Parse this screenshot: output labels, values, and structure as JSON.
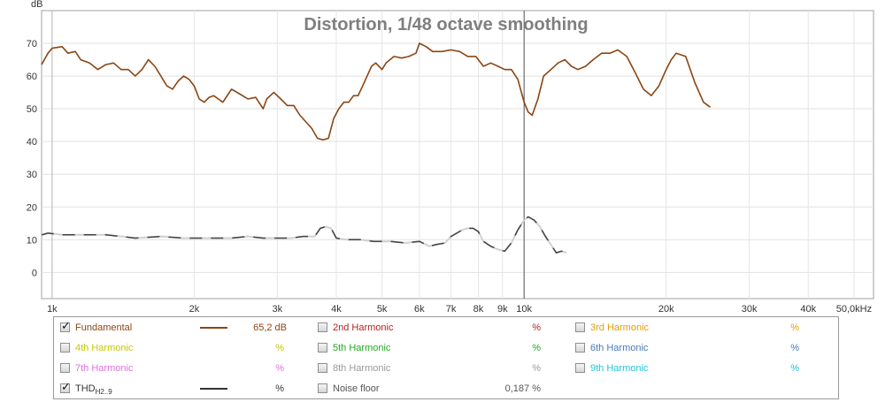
{
  "chart_data": {
    "type": "line",
    "title": "Distortion, 1/48 octave smoothing",
    "ylabel": "dB",
    "xscale": "log",
    "xlim": [
      950,
      55000
    ],
    "ylim": [
      -8,
      80
    ],
    "grid": true,
    "y_ticks": [
      "0",
      "10",
      "20",
      "30",
      "40",
      "50",
      "60",
      "70"
    ],
    "x_ticks": [
      {
        "value": 1000,
        "label": "1k"
      },
      {
        "value": 2000,
        "label": "2k"
      },
      {
        "value": 3000,
        "label": "3k"
      },
      {
        "value": 4000,
        "label": "4k"
      },
      {
        "value": 5000,
        "label": "5k"
      },
      {
        "value": 6000,
        "label": "6k"
      },
      {
        "value": 7000,
        "label": "7k"
      },
      {
        "value": 8000,
        "label": "8k"
      },
      {
        "value": 9000,
        "label": "9k"
      },
      {
        "value": 10000,
        "label": "10k"
      },
      {
        "value": 20000,
        "label": "20k"
      },
      {
        "value": 30000,
        "label": "30k"
      },
      {
        "value": 40000,
        "label": "40k"
      },
      {
        "value": 50000,
        "label": "50,0kHz"
      }
    ],
    "cursor_x": 10000,
    "series": [
      {
        "name": "Fundamental",
        "color": "#8b4513",
        "points": [
          [
            950,
            63.5
          ],
          [
            980,
            67
          ],
          [
            1000,
            68.5
          ],
          [
            1050,
            69
          ],
          [
            1080,
            67
          ],
          [
            1120,
            67.5
          ],
          [
            1150,
            65
          ],
          [
            1200,
            64
          ],
          [
            1250,
            62
          ],
          [
            1300,
            63.5
          ],
          [
            1350,
            64
          ],
          [
            1400,
            62
          ],
          [
            1450,
            62
          ],
          [
            1500,
            60
          ],
          [
            1550,
            62
          ],
          [
            1600,
            65
          ],
          [
            1650,
            63
          ],
          [
            1700,
            60
          ],
          [
            1750,
            57
          ],
          [
            1800,
            56
          ],
          [
            1850,
            58.5
          ],
          [
            1900,
            60
          ],
          [
            1950,
            59
          ],
          [
            2000,
            57
          ],
          [
            2050,
            53
          ],
          [
            2100,
            52
          ],
          [
            2150,
            53.5
          ],
          [
            2200,
            54
          ],
          [
            2250,
            53
          ],
          [
            2300,
            52
          ],
          [
            2400,
            56
          ],
          [
            2500,
            54.5
          ],
          [
            2600,
            53
          ],
          [
            2700,
            53.5
          ],
          [
            2800,
            50
          ],
          [
            2850,
            53
          ],
          [
            2950,
            55
          ],
          [
            3050,
            53
          ],
          [
            3150,
            51
          ],
          [
            3250,
            51
          ],
          [
            3350,
            48
          ],
          [
            3450,
            46
          ],
          [
            3550,
            44
          ],
          [
            3650,
            41
          ],
          [
            3750,
            40.5
          ],
          [
            3850,
            41
          ],
          [
            3950,
            47
          ],
          [
            4050,
            50
          ],
          [
            4150,
            52
          ],
          [
            4250,
            52
          ],
          [
            4350,
            54
          ],
          [
            4450,
            54
          ],
          [
            4550,
            57
          ],
          [
            4650,
            60
          ],
          [
            4750,
            63
          ],
          [
            4850,
            64
          ],
          [
            5000,
            62
          ],
          [
            5100,
            64
          ],
          [
            5300,
            66
          ],
          [
            5500,
            65.5
          ],
          [
            5700,
            66
          ],
          [
            5900,
            67
          ],
          [
            6000,
            70
          ],
          [
            6200,
            69
          ],
          [
            6400,
            67.5
          ],
          [
            6700,
            67.5
          ],
          [
            7000,
            68
          ],
          [
            7300,
            67.5
          ],
          [
            7600,
            66
          ],
          [
            7900,
            66
          ],
          [
            8200,
            63
          ],
          [
            8500,
            64
          ],
          [
            8800,
            63
          ],
          [
            9100,
            62
          ],
          [
            9400,
            62
          ],
          [
            9700,
            59
          ],
          [
            10000,
            52
          ],
          [
            10200,
            49
          ],
          [
            10400,
            48
          ],
          [
            10700,
            53
          ],
          [
            11000,
            60
          ],
          [
            11400,
            62
          ],
          [
            11800,
            64
          ],
          [
            12200,
            65
          ],
          [
            12600,
            63
          ],
          [
            13000,
            62
          ],
          [
            13500,
            63
          ],
          [
            14000,
            65
          ],
          [
            14600,
            67
          ],
          [
            15200,
            67
          ],
          [
            15800,
            68
          ],
          [
            16500,
            66
          ],
          [
            17200,
            61
          ],
          [
            17900,
            56
          ],
          [
            18600,
            54
          ],
          [
            19300,
            57
          ],
          [
            20000,
            62
          ],
          [
            20500,
            65
          ],
          [
            21000,
            67
          ],
          [
            22000,
            66
          ],
          [
            23000,
            58
          ],
          [
            24000,
            52
          ],
          [
            24800,
            50.5
          ]
        ]
      },
      {
        "name": "THD",
        "color": "#444444",
        "points": [
          [
            950,
            11.5
          ],
          [
            980,
            12
          ],
          [
            1050,
            11.5
          ],
          [
            1200,
            11.5
          ],
          [
            1300,
            11.5
          ],
          [
            1400,
            11
          ],
          [
            1500,
            10.5
          ],
          [
            1700,
            11
          ],
          [
            1900,
            10.5
          ],
          [
            2000,
            10.5
          ],
          [
            2200,
            10.5
          ],
          [
            2400,
            10.5
          ],
          [
            2600,
            11
          ],
          [
            2800,
            10.5
          ],
          [
            3000,
            10.5
          ],
          [
            3200,
            10.5
          ],
          [
            3400,
            11
          ],
          [
            3600,
            11
          ],
          [
            3700,
            13.5
          ],
          [
            3800,
            14
          ],
          [
            3900,
            13.5
          ],
          [
            4000,
            10.5
          ],
          [
            4200,
            10
          ],
          [
            4500,
            10
          ],
          [
            4800,
            9.5
          ],
          [
            5200,
            9.5
          ],
          [
            5600,
            9
          ],
          [
            6000,
            9.5
          ],
          [
            6300,
            8
          ],
          [
            6500,
            8.5
          ],
          [
            6800,
            9
          ],
          [
            7000,
            11
          ],
          [
            7200,
            12
          ],
          [
            7400,
            13
          ],
          [
            7600,
            13.5
          ],
          [
            7800,
            13.5
          ],
          [
            8000,
            12.5
          ],
          [
            8200,
            9.5
          ],
          [
            8500,
            8
          ],
          [
            8800,
            7
          ],
          [
            9100,
            6.5
          ],
          [
            9400,
            9
          ],
          [
            9700,
            13
          ],
          [
            10000,
            16
          ],
          [
            10200,
            17
          ],
          [
            10500,
            16
          ],
          [
            10800,
            14
          ],
          [
            11100,
            11
          ],
          [
            11400,
            8.5
          ],
          [
            11700,
            6
          ],
          [
            12000,
            6.5
          ],
          [
            12300,
            6
          ]
        ]
      }
    ]
  },
  "legend": {
    "fundamental": {
      "label": "Fundamental",
      "checked": true,
      "value": "65,2 dB",
      "color": "#8b4513"
    },
    "h2": {
      "label": "2nd Harmonic",
      "checked": false,
      "value": "%",
      "color": "#b22222"
    },
    "h3": {
      "label": "3rd Harmonic",
      "checked": false,
      "value": "%",
      "color": "#e0a000"
    },
    "h4": {
      "label": "4th Harmonic",
      "checked": false,
      "value": "%",
      "color": "#c8c800"
    },
    "h5": {
      "label": "5th Harmonic",
      "checked": false,
      "value": "%",
      "color": "#22aa22"
    },
    "h6": {
      "label": "6th Harmonic",
      "checked": false,
      "value": "%",
      "color": "#4a7ab8"
    },
    "h7": {
      "label": "7th Harmonic",
      "checked": false,
      "value": "%",
      "color": "#e070e0"
    },
    "h8": {
      "label": "8th Harmonic",
      "checked": false,
      "value": "%",
      "color": "#999999"
    },
    "h9": {
      "label": "9th Harmonic",
      "checked": false,
      "value": "%",
      "color": "#1ec8d8"
    },
    "thd": {
      "label": "THD",
      "sub": "H2..9",
      "checked": true,
      "value": "%",
      "color": "#333333"
    },
    "noise": {
      "label": "Noise floor",
      "checked": false,
      "value": "0,187 %",
      "color": "#555555"
    }
  }
}
